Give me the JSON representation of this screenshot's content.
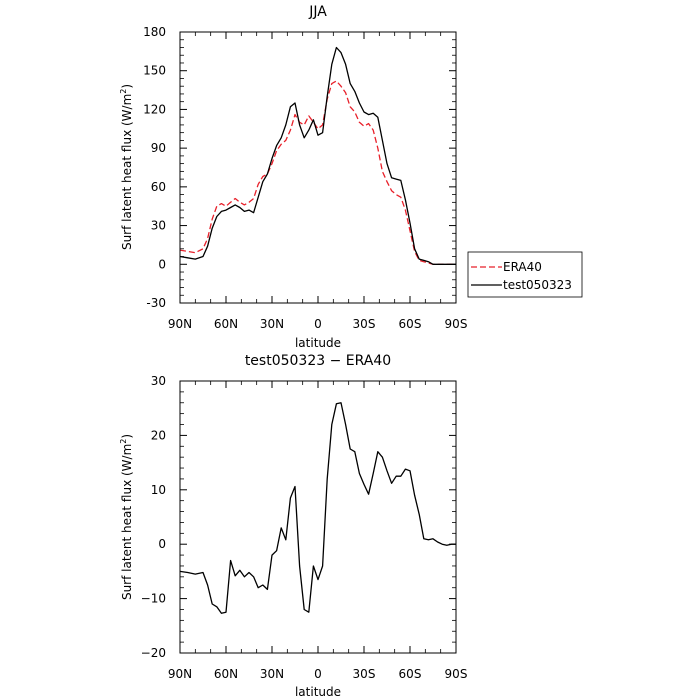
{
  "chart_data": [
    {
      "type": "line",
      "title": "JJA",
      "xlabel": "latitude",
      "ylabel": "Surf latent heat flux (W/m2)",
      "ylabel_main": "Surf latent heat flux (W/m",
      "ylabel_sup": "2",
      "ylabel_close": ")",
      "xlim": [
        90,
        -90
      ],
      "ylim": [
        -30,
        180
      ],
      "xticks": [
        90,
        60,
        30,
        0,
        -30,
        -60,
        -90
      ],
      "xtick_labels": [
        "90N",
        "60N",
        "30N",
        "0",
        "30S",
        "60S",
        "90S"
      ],
      "yticks": [
        -30,
        0,
        30,
        60,
        90,
        120,
        150,
        180
      ],
      "ytick_labels": [
        "-30",
        "0",
        "30",
        "60",
        "90",
        "120",
        "150",
        "180"
      ],
      "legend": {
        "position": "outside-right"
      },
      "series": [
        {
          "name": "ERA40",
          "color": "#e8202a",
          "dash": "dashed",
          "x": [
            90,
            85,
            80,
            75,
            72,
            69,
            66,
            63,
            60,
            57,
            54,
            51,
            48,
            45,
            42,
            39,
            36,
            33,
            30,
            27,
            24,
            21,
            18,
            15,
            12,
            9,
            6,
            3,
            0,
            -3,
            -6,
            -9,
            -12,
            -15,
            -18,
            -21,
            -24,
            -27,
            -30,
            -33,
            -36,
            -39,
            -42,
            -45,
            -48,
            -51,
            -54,
            -57,
            -60,
            -63,
            -66,
            -69,
            -72,
            -75,
            -78,
            -81,
            -84,
            -87,
            -90
          ],
          "values": [
            11,
            10,
            9,
            12,
            20,
            35,
            45,
            47,
            45,
            48,
            51,
            48,
            46,
            48,
            51,
            62,
            68,
            70,
            78,
            88,
            93,
            96,
            104,
            116,
            110,
            108,
            115,
            110,
            105,
            108,
            128,
            140,
            142,
            138,
            133,
            122,
            118,
            110,
            107,
            109,
            104,
            90,
            72,
            64,
            57,
            54,
            52,
            42,
            26,
            10,
            3,
            2,
            1,
            0,
            0,
            0,
            0,
            0,
            0
          ]
        },
        {
          "name": "test050323",
          "color": "#000000",
          "dash": "solid",
          "x": [
            90,
            85,
            80,
            75,
            72,
            69,
            66,
            63,
            60,
            57,
            54,
            51,
            48,
            45,
            42,
            39,
            36,
            33,
            30,
            27,
            24,
            21,
            18,
            15,
            12,
            9,
            6,
            3,
            0,
            -3,
            -6,
            -9,
            -12,
            -15,
            -18,
            -21,
            -24,
            -27,
            -30,
            -33,
            -36,
            -39,
            -42,
            -45,
            -48,
            -51,
            -54,
            -57,
            -60,
            -63,
            -66,
            -69,
            -72,
            -75,
            -78,
            -81,
            -84,
            -87,
            -90
          ],
          "values": [
            6,
            5,
            4,
            6,
            14,
            28,
            37,
            41,
            42,
            44,
            46,
            44,
            41,
            42,
            40,
            52,
            64,
            70,
            82,
            92,
            98,
            108,
            122,
            125,
            108,
            98,
            104,
            112,
            100,
            102,
            130,
            155,
            168,
            164,
            155,
            140,
            134,
            125,
            118,
            116,
            117,
            114,
            96,
            78,
            67,
            66,
            65,
            50,
            32,
            12,
            4,
            3,
            2,
            0,
            0,
            0,
            0,
            0,
            0
          ]
        }
      ]
    },
    {
      "type": "line",
      "title": "test050323 − ERA40",
      "xlabel": "latitude",
      "ylabel": "Surf latent heat flux (W/m2)",
      "ylabel_main": "Surf latent heat flux (W/m",
      "ylabel_sup": "2",
      "ylabel_close": ")",
      "xlim": [
        90,
        -90
      ],
      "ylim": [
        -20,
        30
      ],
      "xticks": [
        90,
        60,
        30,
        0,
        -30,
        -60,
        -90
      ],
      "xtick_labels": [
        "90N",
        "60N",
        "30N",
        "0",
        "30S",
        "60S",
        "90S"
      ],
      "yticks": [
        -20,
        -10,
        0,
        10,
        20,
        30
      ],
      "ytick_labels": [
        "−20",
        "−10",
        "0",
        "10",
        "20",
        "30"
      ],
      "series": [
        {
          "color": "#000000",
          "dash": "solid",
          "x": [
            90,
            85,
            80,
            75,
            72,
            69,
            66,
            63,
            60,
            57,
            54,
            51,
            48,
            45,
            42,
            39,
            36,
            33,
            30,
            27,
            24,
            21,
            18,
            15,
            12,
            9,
            6,
            3,
            0,
            -3,
            -6,
            -9,
            -12,
            -15,
            -18,
            -21,
            -24,
            -27,
            -30,
            -33,
            -36,
            -39,
            -42,
            -45,
            -48,
            -51,
            -54,
            -57,
            -60,
            -63,
            -66,
            -69,
            -72,
            -75,
            -78,
            -81,
            -84,
            -87,
            -90
          ],
          "values": [
            -5,
            -5.2,
            -5.5,
            -5.2,
            -7.5,
            -11,
            -11.5,
            -12.7,
            -12.5,
            -3,
            -5.8,
            -4.8,
            -6,
            -5.2,
            -6,
            -8,
            -7.5,
            -8.3,
            -2,
            -1.2,
            3,
            0.8,
            8.5,
            10.6,
            -4,
            -12,
            -12.5,
            -4,
            -6.5,
            -4,
            12,
            22,
            25.8,
            26,
            22,
            17.5,
            17,
            13,
            11,
            9.2,
            13,
            17,
            16,
            13.5,
            11.2,
            12.5,
            12.5,
            13.8,
            13.5,
            9,
            5.5,
            1,
            0.8,
            1,
            0.4,
            0,
            -0.2,
            0,
            0
          ]
        }
      ]
    }
  ]
}
